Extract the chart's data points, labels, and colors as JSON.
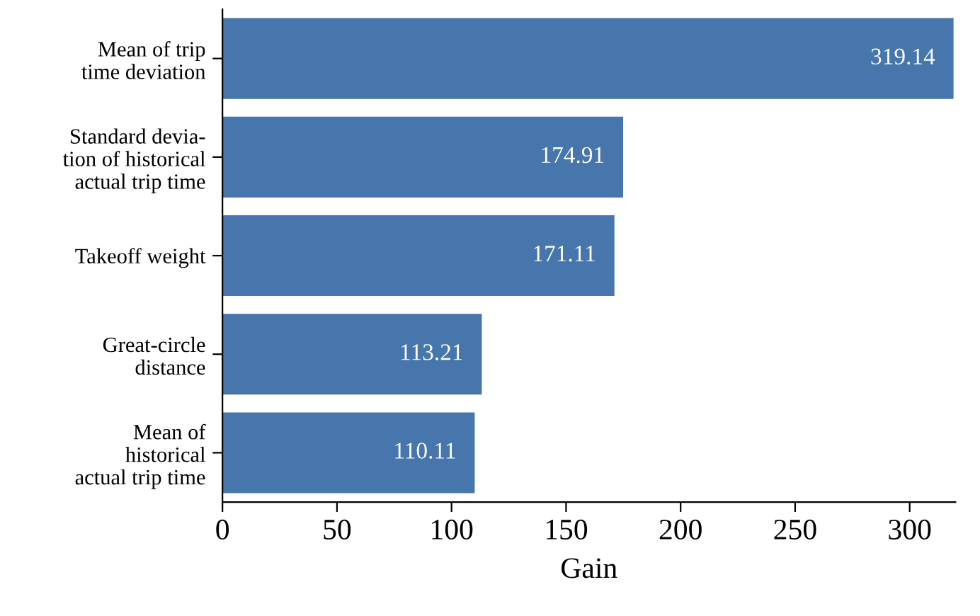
{
  "chart_data": {
    "type": "bar",
    "orientation": "horizontal",
    "xlabel": "Gain",
    "categories": [
      "Mean of trip\ntime deviation",
      "Standard devia-\ntion of historical\nactual trip time",
      "Takeoff weight",
      "Great-circle\ndistance",
      "Mean of\nhistorical\nactual trip time"
    ],
    "values": [
      319.14,
      174.91,
      171.11,
      113.21,
      110.11
    ],
    "color": "#4676ab",
    "xlim": [
      0,
      320
    ],
    "xticks": [
      0,
      50,
      100,
      150,
      200,
      250,
      300
    ],
    "data_labels": true,
    "grid": false,
    "legend": false
  }
}
